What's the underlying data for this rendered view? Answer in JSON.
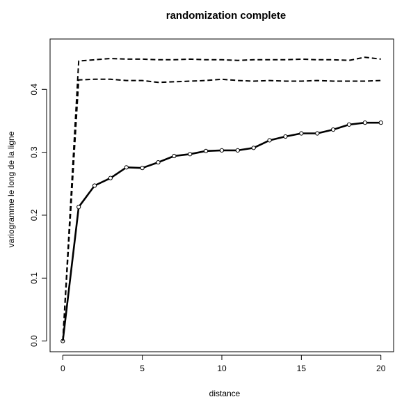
{
  "chart_data": {
    "type": "line",
    "title": "randomization complete",
    "xlabel": "distance",
    "ylabel": "variogramme le long de la ligne",
    "xlim": [
      -0.8,
      20.8
    ],
    "ylim": [
      -0.017,
      0.48
    ],
    "xticks": [
      0,
      5,
      10,
      15,
      20
    ],
    "yticks": [
      0.0,
      0.1,
      0.2,
      0.3,
      0.4
    ],
    "xtick_labels": [
      "0",
      "5",
      "10",
      "15",
      "20"
    ],
    "ytick_labels": [
      "0.0",
      "0.1",
      "0.2",
      "0.3",
      "0.4"
    ],
    "grid": false,
    "series": [
      {
        "style": "solid",
        "markers": true,
        "x": [
          0,
          1,
          2,
          3,
          4,
          5,
          6,
          7,
          8,
          9,
          10,
          11,
          12,
          13,
          14,
          15,
          16,
          17,
          18,
          19,
          20
        ],
        "y": [
          0.0,
          0.213,
          0.247,
          0.259,
          0.276,
          0.275,
          0.284,
          0.294,
          0.297,
          0.302,
          0.303,
          0.303,
          0.307,
          0.319,
          0.325,
          0.33,
          0.33,
          0.336,
          0.344,
          0.347,
          0.347
        ]
      },
      {
        "style": "dashed",
        "markers": false,
        "x": [
          0,
          1,
          2,
          3,
          4,
          5,
          6,
          7,
          8,
          9,
          10,
          11,
          12,
          13,
          14,
          15,
          16,
          17,
          18,
          19,
          20
        ],
        "y": [
          0.0,
          0.445,
          0.447,
          0.449,
          0.448,
          0.448,
          0.447,
          0.447,
          0.448,
          0.447,
          0.447,
          0.446,
          0.447,
          0.447,
          0.447,
          0.448,
          0.447,
          0.447,
          0.446,
          0.451,
          0.448
        ]
      },
      {
        "style": "dashed",
        "markers": false,
        "x": [
          0,
          1,
          2,
          3,
          4,
          5,
          6,
          7,
          8,
          9,
          10,
          11,
          12,
          13,
          14,
          15,
          16,
          17,
          18,
          19,
          20
        ],
        "y": [
          0.0,
          0.415,
          0.416,
          0.416,
          0.414,
          0.414,
          0.411,
          0.412,
          0.413,
          0.414,
          0.416,
          0.414,
          0.413,
          0.414,
          0.413,
          0.413,
          0.414,
          0.413,
          0.413,
          0.413,
          0.414
        ]
      }
    ]
  }
}
